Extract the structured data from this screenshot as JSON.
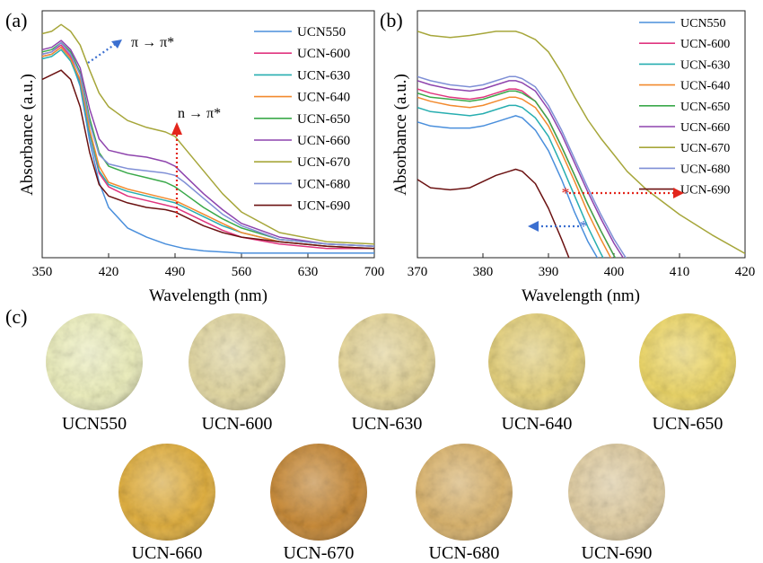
{
  "chart_data": [
    {
      "panel": "(a)",
      "type": "line",
      "xlabel": "Wavelength (nm)",
      "ylabel": "Absorbance (a.u.)",
      "xlim": [
        350,
        700
      ],
      "xticks": [
        350,
        420,
        490,
        560,
        630,
        700
      ],
      "x": [
        350,
        360,
        370,
        380,
        390,
        400,
        410,
        420,
        440,
        460,
        480,
        490,
        500,
        520,
        540,
        560,
        600,
        650,
        700
      ],
      "legend_position": "right",
      "annotations": [
        {
          "text": "π → π*",
          "x": 395,
          "color": "#3b6fd0"
        },
        {
          "text": "n → π*",
          "x": 490,
          "color": "#e3261c"
        }
      ],
      "series": [
        {
          "name": "UCN550",
          "color": "#4a8fdc",
          "values": [
            0.86,
            0.87,
            0.9,
            0.85,
            0.73,
            0.49,
            0.31,
            0.2,
            0.11,
            0.07,
            0.04,
            0.03,
            0.02,
            0.01,
            0.005,
            0.0,
            0.0,
            0.0,
            0.0
          ]
        },
        {
          "name": "UCN-600",
          "color": "#e0357f",
          "values": [
            0.87,
            0.88,
            0.91,
            0.86,
            0.75,
            0.52,
            0.35,
            0.29,
            0.25,
            0.23,
            0.21,
            0.2,
            0.18,
            0.14,
            0.1,
            0.07,
            0.04,
            0.02,
            0.02
          ]
        },
        {
          "name": "UCN-630",
          "color": "#27aeb0",
          "values": [
            0.85,
            0.86,
            0.89,
            0.84,
            0.74,
            0.52,
            0.36,
            0.3,
            0.27,
            0.25,
            0.23,
            0.22,
            0.2,
            0.16,
            0.12,
            0.09,
            0.05,
            0.03,
            0.02
          ]
        },
        {
          "name": "UCN-640",
          "color": "#f28a2e",
          "values": [
            0.86,
            0.87,
            0.9,
            0.85,
            0.76,
            0.54,
            0.38,
            0.31,
            0.28,
            0.26,
            0.24,
            0.23,
            0.21,
            0.17,
            0.13,
            0.09,
            0.05,
            0.03,
            0.02
          ]
        },
        {
          "name": "UCN-650",
          "color": "#3aa94a",
          "values": [
            0.88,
            0.89,
            0.92,
            0.88,
            0.79,
            0.59,
            0.44,
            0.38,
            0.35,
            0.33,
            0.31,
            0.29,
            0.26,
            0.2,
            0.15,
            0.11,
            0.06,
            0.04,
            0.03
          ]
        },
        {
          "name": "UCN-660",
          "color": "#8e44ad",
          "values": [
            0.89,
            0.9,
            0.93,
            0.89,
            0.81,
            0.63,
            0.5,
            0.45,
            0.43,
            0.42,
            0.4,
            0.38,
            0.34,
            0.26,
            0.19,
            0.13,
            0.07,
            0.04,
            0.03
          ]
        },
        {
          "name": "UCN-670",
          "color": "#a6a63a",
          "values": [
            0.96,
            0.97,
            1.0,
            0.97,
            0.91,
            0.8,
            0.7,
            0.64,
            0.58,
            0.55,
            0.53,
            0.51,
            0.46,
            0.36,
            0.26,
            0.18,
            0.09,
            0.05,
            0.04
          ]
        },
        {
          "name": "UCN-680",
          "color": "#7f8fd6",
          "values": [
            0.87,
            0.88,
            0.92,
            0.87,
            0.78,
            0.57,
            0.43,
            0.39,
            0.37,
            0.36,
            0.35,
            0.34,
            0.31,
            0.24,
            0.17,
            0.12,
            0.06,
            0.04,
            0.03
          ]
        },
        {
          "name": "UCN-690",
          "color": "#6b1212",
          "values": [
            0.76,
            0.78,
            0.8,
            0.76,
            0.64,
            0.44,
            0.3,
            0.25,
            0.22,
            0.2,
            0.19,
            0.18,
            0.16,
            0.12,
            0.09,
            0.07,
            0.05,
            0.03,
            0.02
          ]
        }
      ]
    },
    {
      "panel": "(b)",
      "type": "line",
      "xlabel": "Wavelength (nm)",
      "ylabel": "Absorbance (a.u.)",
      "xlim": [
        370,
        420
      ],
      "xticks": [
        370,
        380,
        390,
        400,
        410,
        420
      ],
      "x": [
        370,
        372,
        375,
        378,
        380,
        382,
        384,
        385,
        386,
        388,
        390,
        392,
        394,
        396,
        398,
        400,
        402,
        405,
        410,
        415,
        420
      ],
      "legend_position": "right",
      "series": [
        {
          "name": "UCN550",
          "color": "#4a8fdc",
          "values": [
            0.66,
            0.64,
            0.63,
            0.63,
            0.64,
            0.66,
            0.68,
            0.69,
            0.68,
            0.62,
            0.52,
            0.38,
            0.22,
            0.08,
            -0.03,
            -0.1,
            -0.1,
            -0.1,
            -0.1,
            -0.1,
            -0.1
          ]
        },
        {
          "name": "UCN-600",
          "color": "#e0357f",
          "values": [
            0.82,
            0.8,
            0.78,
            0.77,
            0.78,
            0.8,
            0.82,
            0.82,
            0.81,
            0.76,
            0.67,
            0.54,
            0.4,
            0.26,
            0.13,
            0.01,
            -0.1,
            -0.1,
            -0.1,
            -0.1,
            -0.1
          ]
        },
        {
          "name": "UCN-630",
          "color": "#27aeb0",
          "values": [
            0.73,
            0.71,
            0.7,
            0.69,
            0.7,
            0.72,
            0.74,
            0.74,
            0.73,
            0.68,
            0.59,
            0.45,
            0.3,
            0.15,
            0.02,
            -0.1,
            -0.1,
            -0.1,
            -0.1,
            -0.1,
            -0.1
          ]
        },
        {
          "name": "UCN-640",
          "color": "#f28a2e",
          "values": [
            0.78,
            0.76,
            0.74,
            0.73,
            0.74,
            0.76,
            0.78,
            0.78,
            0.77,
            0.73,
            0.64,
            0.51,
            0.37,
            0.22,
            0.09,
            -0.03,
            -0.1,
            -0.1,
            -0.1,
            -0.1,
            -0.1
          ]
        },
        {
          "name": "UCN-650",
          "color": "#3aa94a",
          "values": [
            0.8,
            0.78,
            0.77,
            0.76,
            0.77,
            0.79,
            0.81,
            0.81,
            0.8,
            0.76,
            0.67,
            0.54,
            0.4,
            0.26,
            0.13,
            0.01,
            -0.1,
            -0.1,
            -0.1,
            -0.1,
            -0.1
          ]
        },
        {
          "name": "UCN-660",
          "color": "#8e44ad",
          "values": [
            0.86,
            0.84,
            0.82,
            0.81,
            0.82,
            0.84,
            0.86,
            0.86,
            0.85,
            0.81,
            0.72,
            0.6,
            0.46,
            0.32,
            0.19,
            0.07,
            -0.03,
            -0.1,
            -0.1,
            -0.1,
            -0.1
          ]
        },
        {
          "name": "UCN-670",
          "color": "#a6a63a",
          "values": [
            1.1,
            1.08,
            1.07,
            1.08,
            1.09,
            1.1,
            1.1,
            1.1,
            1.09,
            1.06,
            1.0,
            0.9,
            0.78,
            0.67,
            0.58,
            0.5,
            0.42,
            0.33,
            0.21,
            0.11,
            0.02
          ]
        },
        {
          "name": "UCN-680",
          "color": "#7f8fd6",
          "values": [
            0.88,
            0.86,
            0.84,
            0.83,
            0.84,
            0.86,
            0.88,
            0.88,
            0.87,
            0.83,
            0.74,
            0.62,
            0.48,
            0.34,
            0.21,
            0.09,
            -0.01,
            -0.1,
            -0.1,
            -0.1,
            -0.1
          ]
        },
        {
          "name": "UCN-690",
          "color": "#6b1212",
          "values": [
            0.38,
            0.34,
            0.33,
            0.34,
            0.37,
            0.4,
            0.42,
            0.43,
            0.42,
            0.36,
            0.24,
            0.09,
            -0.07,
            -0.1,
            -0.1,
            -0.1,
            -0.1,
            -0.1,
            -0.1,
            -0.1,
            -0.1
          ]
        }
      ]
    }
  ],
  "panels": {
    "a": "(a)",
    "b": "(b)",
    "c": "(c)"
  },
  "samples": [
    {
      "label": "UCN550",
      "color": "#eef0bf"
    },
    {
      "label": "UCN-600",
      "color": "#e4d9a4"
    },
    {
      "label": "UCN-630",
      "color": "#e6d69a"
    },
    {
      "label": "UCN-640",
      "color": "#e6d27e"
    },
    {
      "label": "UCN-650",
      "color": "#eed86a"
    },
    {
      "label": "UCN-660",
      "color": "#e2b142"
    },
    {
      "label": "UCN-670",
      "color": "#c98c3a"
    },
    {
      "label": "UCN-680",
      "color": "#dcb670"
    },
    {
      "label": "UCN-690",
      "color": "#e2cfa4"
    }
  ]
}
